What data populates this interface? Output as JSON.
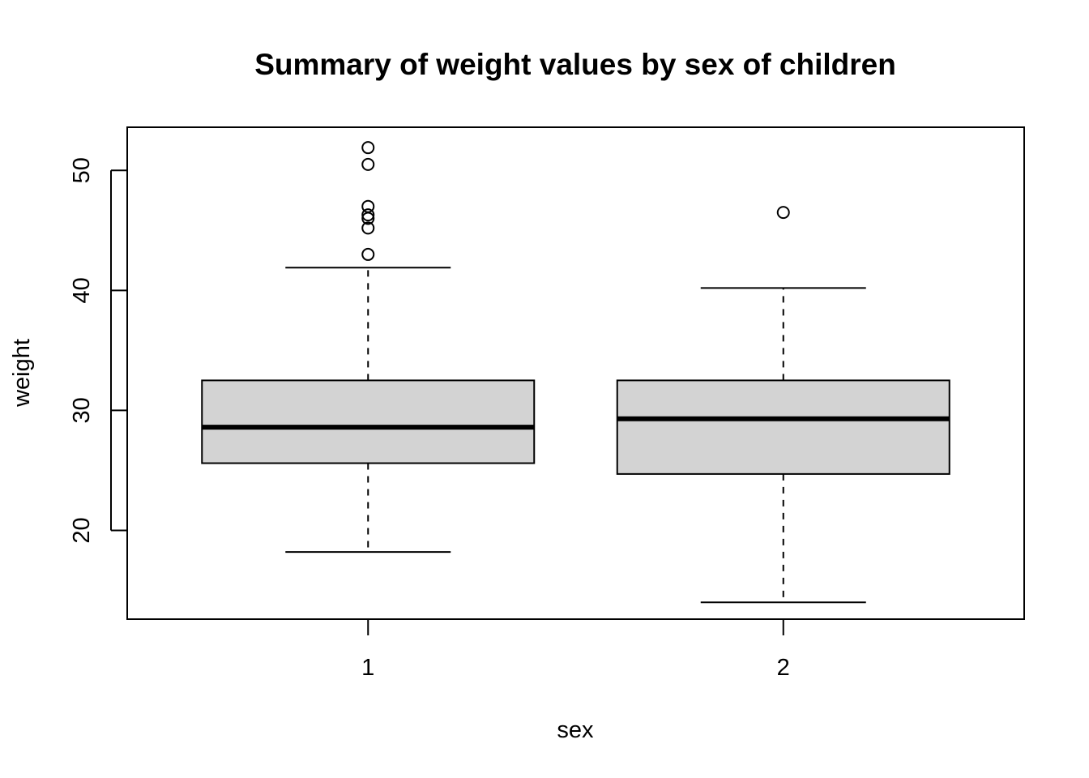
{
  "chart_data": {
    "type": "boxplot",
    "title": "Summary of weight values by sex of children",
    "xlabel": "sex",
    "ylabel": "weight",
    "categories": [
      "1",
      "2"
    ],
    "yticks": [
      20,
      30,
      40,
      50
    ],
    "ylim": [
      12.6,
      53.6
    ],
    "grid": false,
    "legend": "none",
    "box_fill": "#d3d3d3",
    "boxes": [
      {
        "category": "1",
        "whisker_low": 18.2,
        "q1": 25.6,
        "median": 28.6,
        "q3": 32.5,
        "whisker_high": 41.9,
        "outliers": [
          43.0,
          45.2,
          46.0,
          46.3,
          47.0,
          50.5,
          51.9
        ]
      },
      {
        "category": "2",
        "whisker_low": 14.0,
        "q1": 24.7,
        "median": 29.3,
        "q3": 32.5,
        "whisker_high": 40.2,
        "outliers": [
          46.5
        ]
      }
    ]
  }
}
